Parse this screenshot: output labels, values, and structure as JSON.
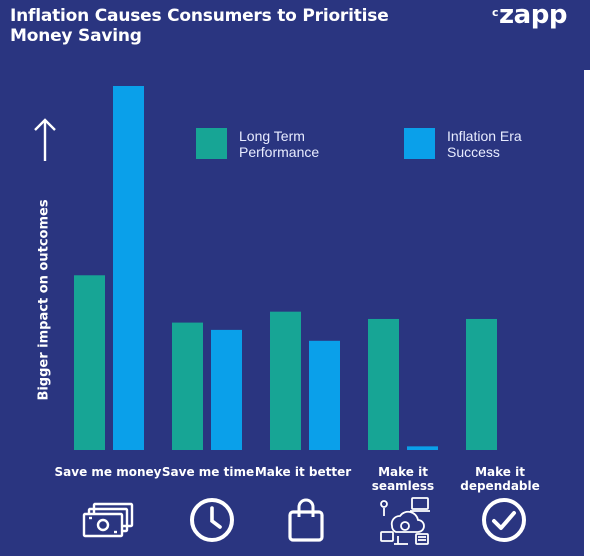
{
  "header": {
    "title": "Inflation Causes Consumers to Prioritise Money Saving",
    "brand_mark": "c",
    "brand_name": "zapp"
  },
  "axis_arrow_icon": "up-arrow-icon",
  "colors": {
    "background": "#2a3580",
    "long_term": "#17a595",
    "inflation_era": "#0aa0ea"
  },
  "chart_data": {
    "type": "bar",
    "categories": [
      "Save me money",
      "Save me time",
      "Make it better",
      "Make it seamless",
      "Make it dependable"
    ],
    "ylabel": "Bigger impact on outcomes",
    "ylim": [
      0,
      100
    ],
    "legend_position": "top",
    "grid": false,
    "series": [
      {
        "name": "Long Term Performance",
        "values": [
          48,
          35,
          38,
          36,
          36
        ]
      },
      {
        "name": "Inflation Era Success",
        "values": [
          100,
          33,
          30,
          1,
          0
        ]
      }
    ]
  },
  "category_icons": [
    "money-icon",
    "clock-icon",
    "shopping-bag-icon",
    "seamless-tech-icon",
    "check-circle-icon"
  ]
}
